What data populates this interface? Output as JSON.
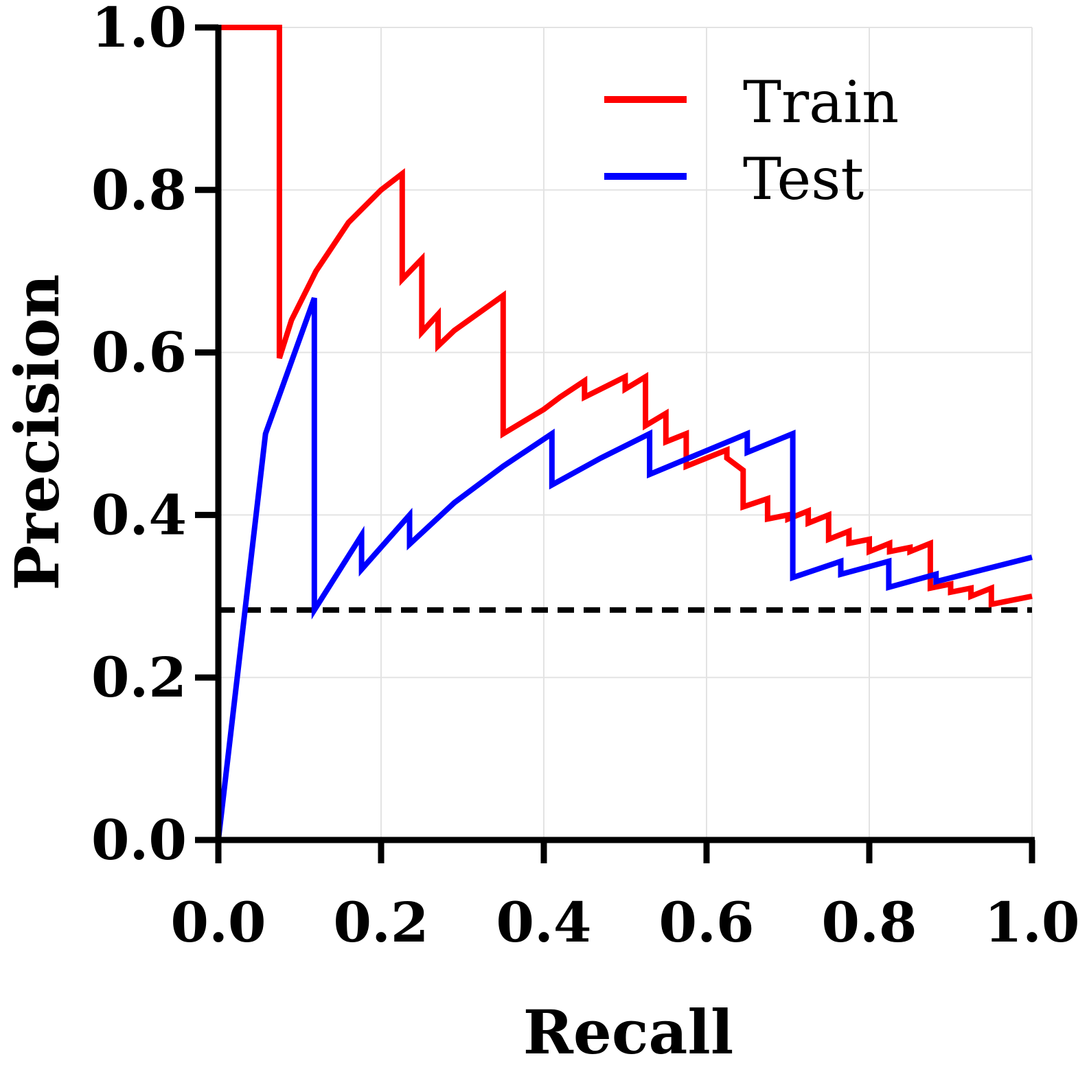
{
  "chart_data": {
    "type": "line",
    "xlabel": "Recall",
    "ylabel": "Precision",
    "xlim": [
      0,
      1
    ],
    "ylim": [
      0,
      1
    ],
    "xticks": [
      "0.0",
      "0.2",
      "0.4",
      "0.6",
      "0.8",
      "1.0"
    ],
    "yticks": [
      "0.0",
      "0.2",
      "0.4",
      "0.6",
      "0.8",
      "1.0"
    ],
    "grid": true,
    "legend_position": "top-right",
    "baseline": {
      "y": 0.283,
      "style": "dashed",
      "color": "#000000"
    },
    "series": [
      {
        "name": "Train",
        "color": "#ff0000",
        "x": [
          0.0,
          0.075,
          0.075,
          0.09,
          0.12,
          0.16,
          0.2,
          0.226,
          0.226,
          0.25,
          0.25,
          0.27,
          0.27,
          0.29,
          0.29,
          0.35,
          0.35,
          0.4,
          0.42,
          0.45,
          0.45,
          0.5,
          0.5,
          0.525,
          0.525,
          0.55,
          0.55,
          0.575,
          0.575,
          0.6,
          0.625,
          0.625,
          0.645,
          0.645,
          0.675,
          0.675,
          0.7,
          0.7,
          0.725,
          0.725,
          0.75,
          0.75,
          0.775,
          0.775,
          0.8,
          0.8,
          0.825,
          0.825,
          0.85,
          0.85,
          0.875,
          0.875,
          0.9,
          0.9,
          0.925,
          0.925,
          0.95,
          0.95,
          0.975,
          1.0
        ],
        "y": [
          1.0,
          1.0,
          0.593,
          0.64,
          0.7,
          0.76,
          0.8,
          0.82,
          0.69,
          0.715,
          0.625,
          0.647,
          0.608,
          0.627,
          0.627,
          0.67,
          0.5,
          0.53,
          0.545,
          0.565,
          0.545,
          0.57,
          0.555,
          0.57,
          0.51,
          0.525,
          0.49,
          0.5,
          0.46,
          0.47,
          0.48,
          0.47,
          0.455,
          0.41,
          0.42,
          0.395,
          0.4,
          0.395,
          0.405,
          0.39,
          0.4,
          0.37,
          0.38,
          0.365,
          0.37,
          0.355,
          0.365,
          0.355,
          0.36,
          0.355,
          0.365,
          0.31,
          0.315,
          0.305,
          0.31,
          0.3,
          0.31,
          0.29,
          0.295,
          0.3
        ]
      },
      {
        "name": "Test",
        "color": "#0000ff",
        "x": [
          0.0,
          0.0,
          0.058,
          0.118,
          0.118,
          0.176,
          0.176,
          0.235,
          0.235,
          0.29,
          0.35,
          0.41,
          0.41,
          0.47,
          0.53,
          0.53,
          0.59,
          0.65,
          0.65,
          0.706,
          0.706,
          0.765,
          0.765,
          0.824,
          0.824,
          0.882,
          0.882,
          1.0
        ],
        "y": [
          1.0,
          0.0,
          0.5,
          0.667,
          0.283,
          0.375,
          0.333,
          0.4,
          0.364,
          0.415,
          0.46,
          0.5,
          0.437,
          0.47,
          0.5,
          0.45,
          0.475,
          0.5,
          0.477,
          0.5,
          0.323,
          0.343,
          0.327,
          0.343,
          0.311,
          0.327,
          0.318,
          0.348
        ]
      }
    ]
  }
}
